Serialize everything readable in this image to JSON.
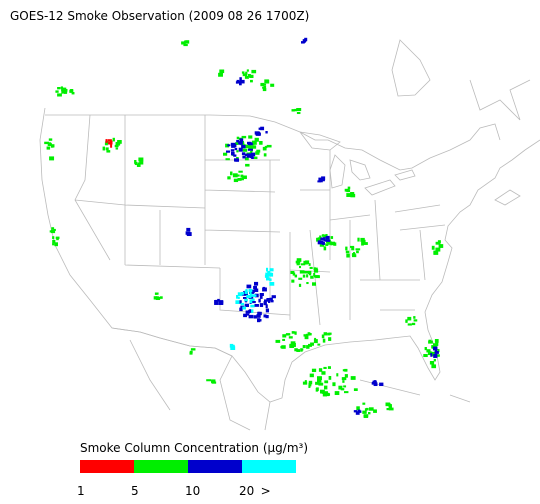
{
  "title": "GOES-12 Smoke Observation (2009 08 26  1700Z)",
  "legend": {
    "title": "Smoke Column Concentration (μg/m³)",
    "colors": [
      "#ff0000",
      "#00ee00",
      "#0000cc",
      "#00ffff"
    ],
    "ticks": [
      "1",
      "5",
      "10",
      "20",
      ">"
    ]
  }
}
